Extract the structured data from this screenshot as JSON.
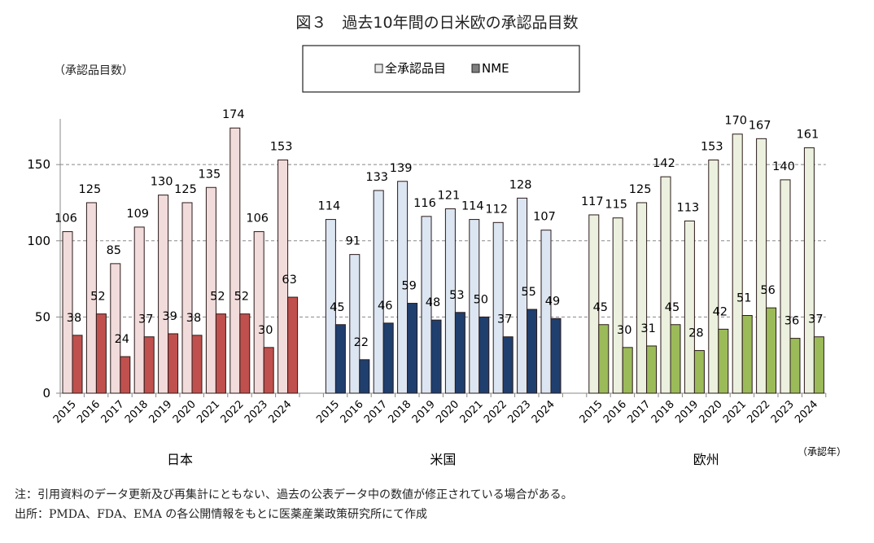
{
  "chart_data": {
    "type": "bar",
    "title": "図３　過去10年間の日米欧の承認品目数",
    "ylabel": "（承認品目数）",
    "xlabel": "（承認年）",
    "ylim": [
      0,
      180
    ],
    "yticks": [
      0,
      50,
      100,
      150
    ],
    "grid": true,
    "legend_position": "top-center",
    "legend": [
      "全承認品目",
      "NME"
    ],
    "years": [
      "2015",
      "2016",
      "2017",
      "2018",
      "2019",
      "2020",
      "2021",
      "2022",
      "2023",
      "2024"
    ],
    "groups": [
      {
        "name": "日本",
        "colors": {
          "total": "#f2dcdb",
          "nme": "#c0504d"
        },
        "series": [
          {
            "name": "全承認品目",
            "values": [
              106,
              125,
              85,
              109,
              130,
              125,
              135,
              174,
              106,
              153
            ]
          },
          {
            "name": "NME",
            "values": [
              38,
              52,
              24,
              37,
              39,
              38,
              52,
              52,
              30,
              63
            ]
          }
        ]
      },
      {
        "name": "米国",
        "colors": {
          "total": "#dce6f2",
          "nme": "#1f3f6e"
        },
        "series": [
          {
            "name": "全承認品目",
            "values": [
              114,
              91,
              133,
              139,
              116,
              121,
              114,
              112,
              128,
              107
            ]
          },
          {
            "name": "NME",
            "values": [
              45,
              22,
              46,
              59,
              48,
              53,
              50,
              37,
              55,
              49
            ]
          }
        ]
      },
      {
        "name": "欧州",
        "colors": {
          "total": "#ebf1de",
          "nme": "#9bbb59"
        },
        "series": [
          {
            "name": "全承認品目",
            "values": [
              117,
              115,
              125,
              142,
              113,
              153,
              170,
              167,
              140,
              161
            ]
          },
          {
            "name": "NME",
            "values": [
              45,
              30,
              31,
              45,
              28,
              42,
              51,
              56,
              36,
              37
            ]
          }
        ]
      }
    ]
  },
  "notes": [
    "注：引用資料のデータ更新及び再集計にともない、過去の公表データ中の数値が修正されている場合がある。",
    "出所：PMDA、FDA、EMA の各公開情報をもとに医薬産業政策研究所にて作成"
  ]
}
